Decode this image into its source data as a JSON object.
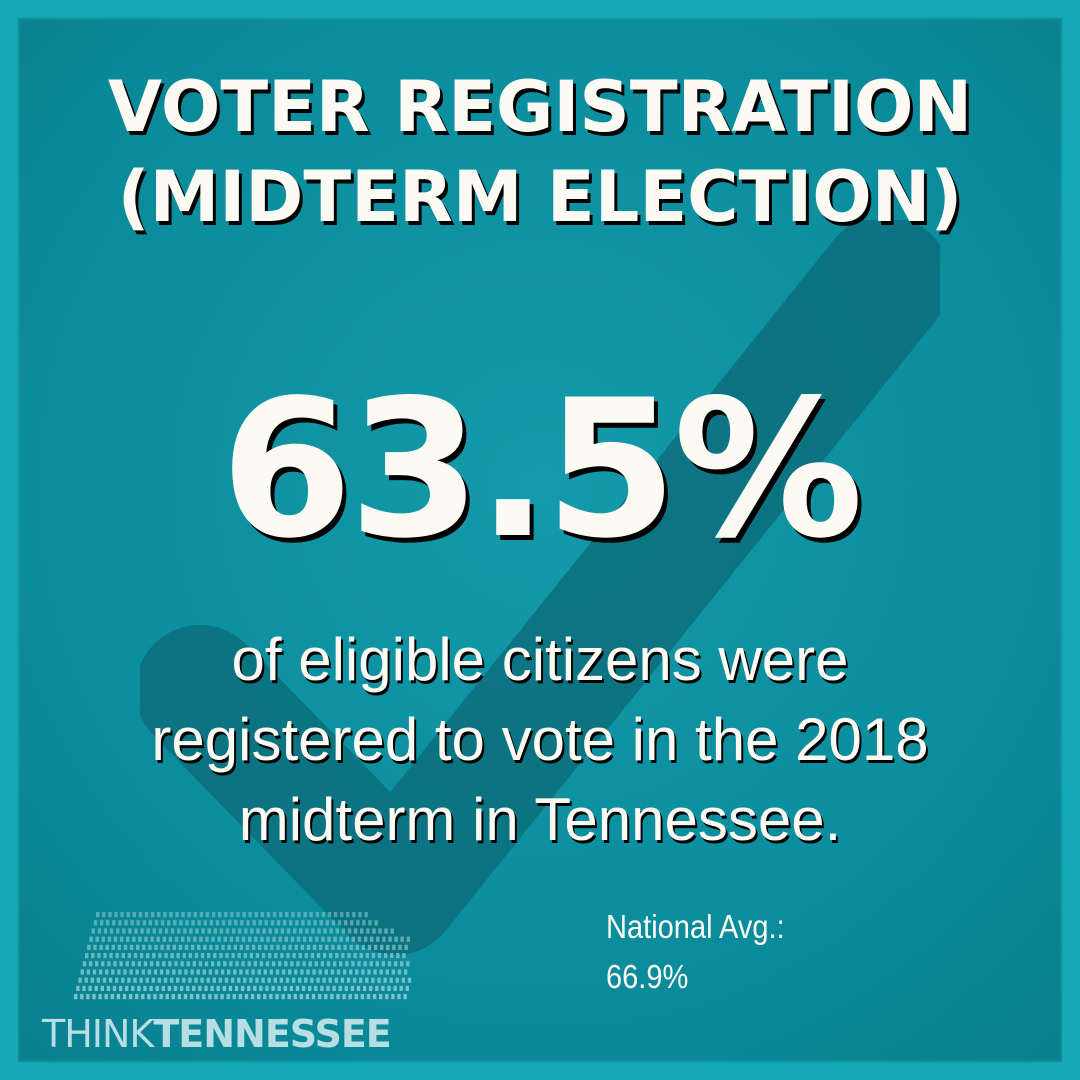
{
  "title": {
    "line1": "VOTER REGISTRATION",
    "line2": "(MIDTERM ELECTION)"
  },
  "statistic": {
    "value": "63.5%"
  },
  "description": {
    "line1": "of eligible citizens were",
    "line2": "registered to vote in the 2018",
    "line3": "midterm in Tennessee."
  },
  "national_average": {
    "label": "National Avg.:",
    "value": "66.9%"
  },
  "logo": {
    "word1": "THINK",
    "word2": "TENNESSEE"
  },
  "colors": {
    "background": "#0b8e9e",
    "frame": "#12a7b5",
    "checkmark": "#0c6f7b",
    "text": "#fbfaf3",
    "logo": "#b7dfe3"
  },
  "icons": {
    "background_mark": "checkmark-icon",
    "logo_graphic": "tennessee-map-icon"
  }
}
